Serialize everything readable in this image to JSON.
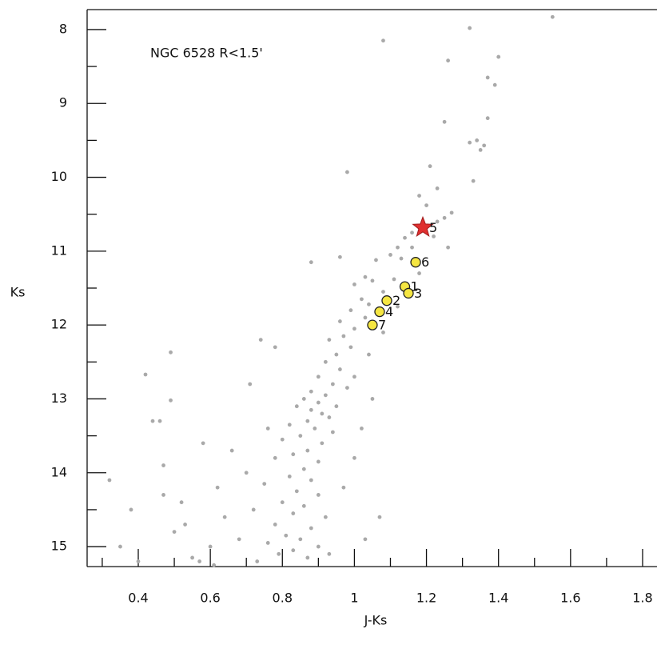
{
  "chart_data": {
    "type": "scatter",
    "annotation": "NGC 6528 R<1.5'",
    "xlabel": "J-Ks",
    "ylabel": "Ks",
    "xlim": [
      0.258,
      1.84
    ],
    "ylim": [
      15.27,
      7.73
    ],
    "xticks": [
      0.4,
      0.6,
      0.8,
      1.0,
      1.2,
      1.4,
      1.6,
      1.8
    ],
    "yticks": [
      8,
      9,
      10,
      11,
      12,
      13,
      14,
      15
    ],
    "xminor": [
      0.3,
      0.5,
      0.7,
      0.9,
      1.1,
      1.3,
      1.5,
      1.7
    ],
    "yminor": [
      8.5,
      9.5,
      10.5,
      11.5,
      12.5,
      13.5,
      14.5
    ],
    "series": [
      {
        "color": "#a9a9a9",
        "marker": "dot",
        "x": [
          1.55,
          1.08,
          1.32,
          1.4,
          1.26,
          1.37,
          1.39,
          1.25,
          1.37,
          1.34,
          1.32,
          1.36,
          1.35,
          0.98,
          1.21,
          1.33,
          1.23,
          1.18,
          1.2,
          1.27,
          1.25,
          1.23,
          1.16,
          1.14,
          1.22,
          1.26,
          1.12,
          1.1,
          1.13,
          1.06,
          0.96,
          0.88,
          1.03,
          1.05,
          1.0,
          1.11,
          1.08,
          1.02,
          1.04,
          0.99,
          1.03,
          0.96,
          1.0,
          0.97,
          0.93,
          0.99,
          0.74,
          0.78,
          0.95,
          0.92,
          0.96,
          0.9,
          0.94,
          0.98,
          0.88,
          0.92,
          0.86,
          0.9,
          0.95,
          0.84,
          0.88,
          0.91,
          0.93,
          0.87,
          0.82,
          0.89,
          0.94,
          0.85,
          0.8,
          0.91,
          0.87,
          0.83,
          0.78,
          0.9,
          0.86,
          0.82,
          0.88,
          0.75,
          0.84,
          0.9,
          0.8,
          0.86,
          0.72,
          0.83,
          0.92,
          0.78,
          0.88,
          0.81,
          0.85,
          0.76,
          0.9,
          0.83,
          0.79,
          0.87,
          0.73,
          0.93,
          0.68,
          0.64,
          0.6,
          0.57,
          0.52,
          0.5,
          0.47,
          0.55,
          0.62,
          0.7,
          0.66,
          0.58,
          0.47,
          0.44,
          0.46,
          0.49,
          0.42,
          0.49,
          0.38,
          0.35,
          0.32,
          0.4,
          0.53,
          0.61,
          1.02,
          1.05,
          1.0,
          1.07,
          1.0,
          0.97,
          1.03,
          0.71,
          0.76,
          1.04,
          1.08,
          1.12,
          1.18,
          1.16
        ],
        "values": [
          7.83,
          8.15,
          7.98,
          8.37,
          8.42,
          8.65,
          8.75,
          9.25,
          9.2,
          9.5,
          9.53,
          9.57,
          9.63,
          9.93,
          9.85,
          10.05,
          10.15,
          10.25,
          10.38,
          10.48,
          10.55,
          10.6,
          10.75,
          10.82,
          10.8,
          10.95,
          10.95,
          11.05,
          11.1,
          11.12,
          11.08,
          11.15,
          11.35,
          11.4,
          11.45,
          11.38,
          11.55,
          11.65,
          11.72,
          11.8,
          11.9,
          11.95,
          12.05,
          12.15,
          12.2,
          12.3,
          12.2,
          12.3,
          12.4,
          12.5,
          12.6,
          12.7,
          12.8,
          12.85,
          12.9,
          12.95,
          13.0,
          13.05,
          13.1,
          13.1,
          13.15,
          13.2,
          13.25,
          13.3,
          13.35,
          13.4,
          13.45,
          13.5,
          13.55,
          13.6,
          13.7,
          13.75,
          13.8,
          13.85,
          13.95,
          14.05,
          14.1,
          14.15,
          14.25,
          14.3,
          14.4,
          14.45,
          14.5,
          14.55,
          14.6,
          14.7,
          14.75,
          14.85,
          14.9,
          14.95,
          15.0,
          15.05,
          15.1,
          15.15,
          15.2,
          15.1,
          14.9,
          14.6,
          15.0,
          15.2,
          14.4,
          14.8,
          14.3,
          15.15,
          14.2,
          14.0,
          13.7,
          13.6,
          13.9,
          13.3,
          13.3,
          13.02,
          12.67,
          12.37,
          14.5,
          15.0,
          14.1,
          15.2,
          14.7,
          15.25,
          13.4,
          13.0,
          12.7,
          14.6,
          13.8,
          14.2,
          14.9,
          12.8,
          13.4,
          12.4,
          12.1,
          11.75,
          11.3,
          10.95
        ]
      },
      {
        "color": "#f5e642",
        "marker": "circle",
        "x": [
          1.14,
          1.09,
          1.15,
          1.07,
          1.17,
          1.05
        ],
        "values": [
          11.48,
          11.67,
          11.57,
          11.82,
          11.15,
          12.0
        ],
        "labels": [
          "1",
          "2",
          "3",
          "4",
          "6",
          "7"
        ]
      },
      {
        "color": "#e03030",
        "marker": "star",
        "x": [
          1.19
        ],
        "values": [
          10.68
        ],
        "labels": [
          "5"
        ]
      }
    ]
  }
}
